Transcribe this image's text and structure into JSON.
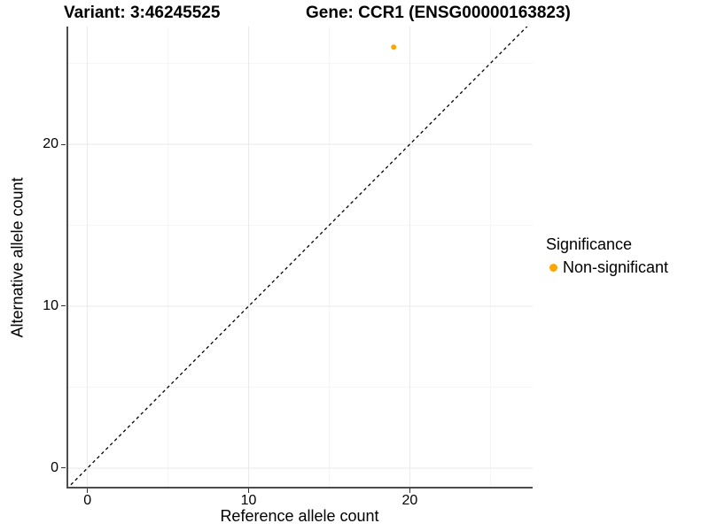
{
  "header": {
    "variant_title": "Variant: 3:46245525",
    "gene_title": "Gene: CCR1 (ENSG00000163823)"
  },
  "chart_data": {
    "type": "scatter",
    "title": "Variant: 3:46245525   Gene: CCR1 (ENSG00000163823)",
    "xlabel": "Reference allele count",
    "ylabel": "Alternative allele count",
    "xlim": [
      -1.3,
      27.62
    ],
    "ylim": [
      -1.26,
      27.27
    ],
    "x_major_ticks": [
      0,
      10,
      20
    ],
    "x_minor_ticks": [
      5,
      15,
      25
    ],
    "y_major_ticks": [
      0,
      10,
      20
    ],
    "y_minor_ticks": [
      5,
      15,
      25
    ],
    "grid": true,
    "legend_position": "right",
    "identity_line": {
      "equation": "y = x",
      "style": "dashed",
      "color": "#000000"
    },
    "series": [
      {
        "name": "Non-significant",
        "color": "#FFA500",
        "points": [
          {
            "x": 19,
            "y": 26
          }
        ]
      }
    ]
  },
  "legend": {
    "title": "Significance",
    "items": [
      {
        "label": "Non-significant",
        "color": "#FFA500",
        "marker": "circle"
      }
    ]
  },
  "style_colors": {
    "axis_line": "#4D4D4D",
    "tick": "#333333",
    "grid_major": "#E9E9E9",
    "grid_minor": "#F5F5F5",
    "point": "#FFA500"
  }
}
